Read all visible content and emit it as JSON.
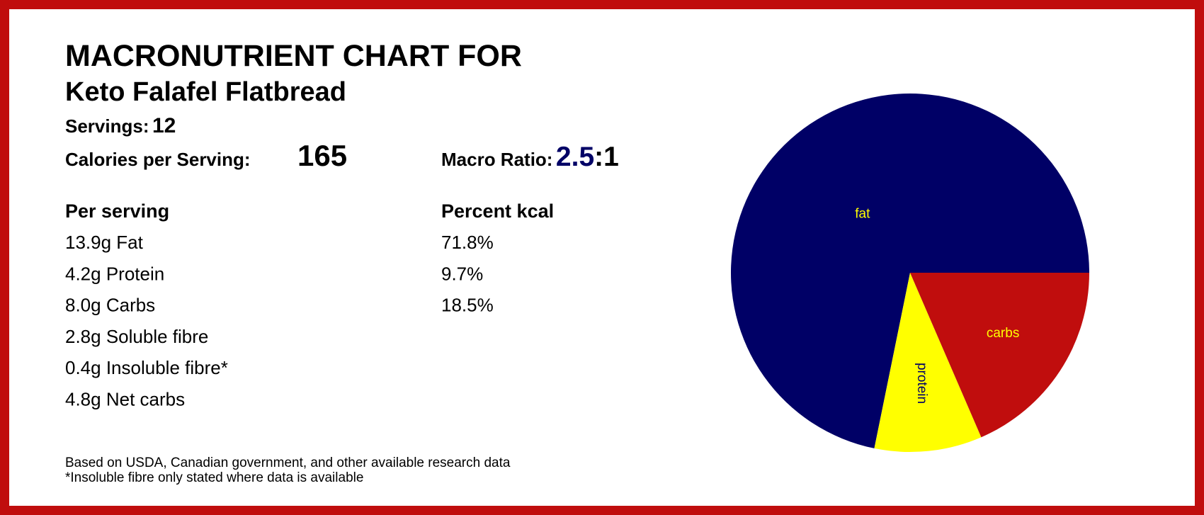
{
  "header": {
    "title": "MACRONUTRIENT CHART FOR",
    "subtitle": "Keto Falafel Flatbread"
  },
  "servings": {
    "label": "Servings:",
    "value": 12
  },
  "calories": {
    "label": "Calories per Serving:",
    "value": 165
  },
  "macro_ratio": {
    "label": "Macro Ratio:",
    "ratio": 2.5,
    "suffix": ":1"
  },
  "nutrients": {
    "heading": "Per serving",
    "items": [
      "13.9g Fat",
      "4.2g Protein",
      "8.0g Carbs",
      "2.8g Soluble fibre",
      "0.4g Insoluble fibre*",
      "4.8g Net carbs"
    ]
  },
  "percent": {
    "heading": "Percent kcal"
  },
  "footnotes": [
    "Based on USDA, Canadian government, and other available research data",
    "*Insoluble fibre only stated where data is available"
  ],
  "chart_data": {
    "type": "pie",
    "categories": [
      "fat",
      "protein",
      "carbs"
    ],
    "values": [
      71.8,
      9.7,
      18.5
    ],
    "value_labels": [
      "71.8%",
      "9.7%",
      "18.5%"
    ],
    "colors": [
      "#000066",
      "#ffff00",
      "#c00d0d"
    ],
    "label_colors": [
      "#ffff00",
      "#000066",
      "#ffff00"
    ]
  }
}
